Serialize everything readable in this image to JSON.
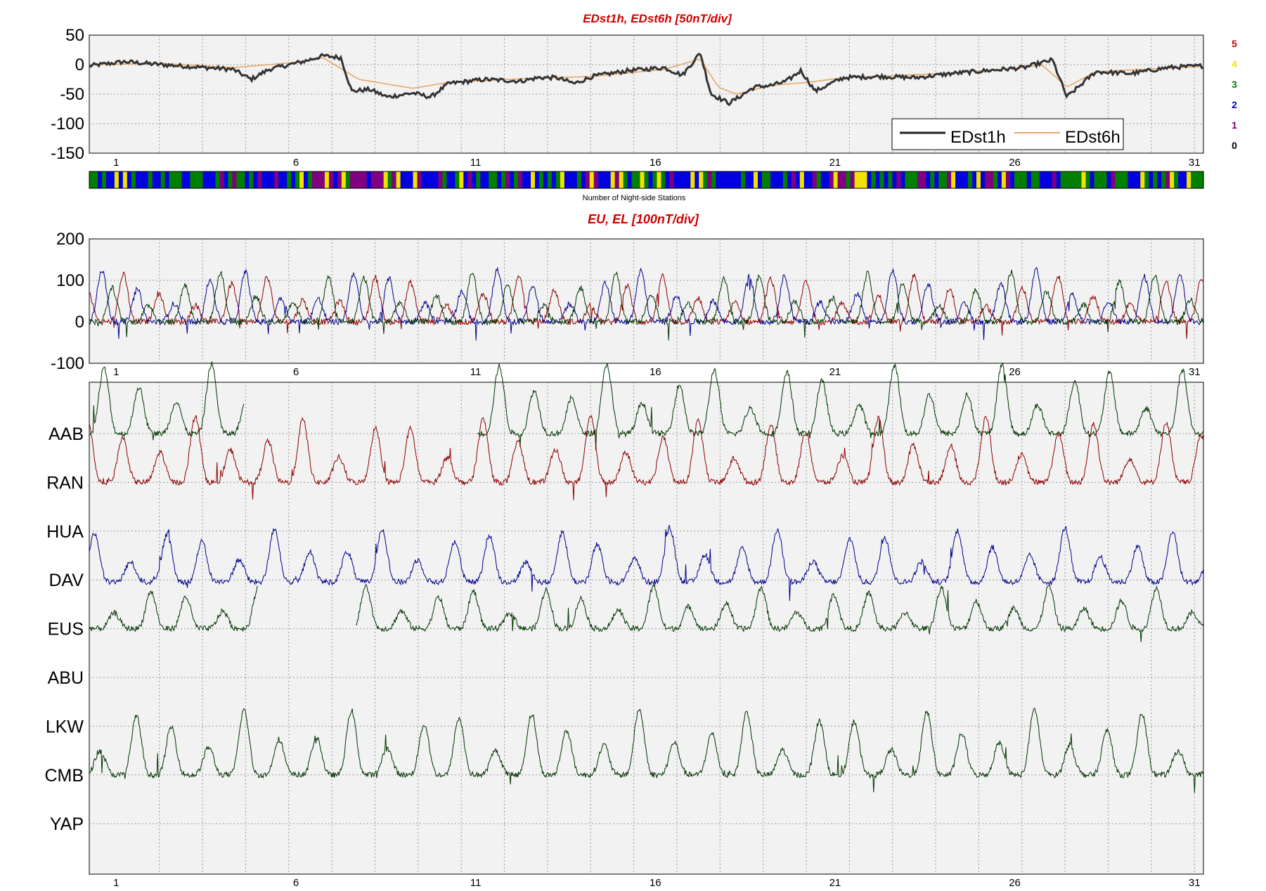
{
  "chart_data": [
    {
      "type": "line",
      "title": "EDst1h, EDst6h [50nT/div]",
      "ylim": [
        -150,
        50
      ],
      "yticks": [
        "50",
        "0",
        "-50",
        "-100",
        "-150"
      ],
      "xlim": [
        0,
        31
      ],
      "xticks": [
        "1",
        "6",
        "11",
        "16",
        "21",
        "26",
        "31"
      ],
      "grid": true,
      "legend_position": "bottom-right",
      "series": [
        {
          "name": "EDst1h",
          "color": "#333333",
          "x": [
            0,
            1,
            2,
            3,
            4,
            4.5,
            5,
            6,
            6.5,
            7,
            7.3,
            7.8,
            8.3,
            9,
            9.5,
            10,
            11,
            12,
            12.5,
            13,
            13.5,
            14,
            15,
            16,
            16.5,
            17,
            17.3,
            17.8,
            18,
            18.5,
            19,
            19.4,
            19.8,
            20.2,
            20.7,
            21,
            22,
            23,
            24,
            25,
            26,
            26.8,
            27.2,
            28,
            29,
            30,
            31
          ],
          "values": [
            -2,
            5,
            0,
            -4,
            -8,
            -25,
            -8,
            6,
            15,
            12,
            -45,
            -42,
            -55,
            -48,
            -55,
            -32,
            -25,
            -28,
            -22,
            -22,
            -32,
            -20,
            -10,
            -5,
            -18,
            20,
            -50,
            -65,
            -58,
            -38,
            -35,
            -28,
            -10,
            -45,
            -30,
            -22,
            -20,
            -22,
            -15,
            -10,
            -5,
            8,
            -55,
            -12,
            -15,
            -5,
            -2
          ]
        },
        {
          "name": "EDst6h",
          "color": "#e8a867",
          "x": [
            0,
            2,
            4,
            6,
            6.5,
            7.5,
            9,
            10,
            12,
            14,
            16,
            17,
            17.5,
            18,
            19,
            20,
            21,
            22,
            24,
            26,
            26.5,
            27.2,
            28,
            30,
            31
          ],
          "values": [
            0,
            2,
            -5,
            5,
            12,
            -25,
            -40,
            -30,
            -24,
            -20,
            -8,
            10,
            -38,
            -50,
            -35,
            -30,
            -22,
            -20,
            -14,
            -5,
            0,
            -38,
            -12,
            -6,
            -3
          ]
        }
      ],
      "color_bar_label": "Number of Night-side Stations",
      "color_bar_scale": [
        {
          "label": "5",
          "color": "#d00000"
        },
        {
          "label": "4",
          "color": "#f2e200"
        },
        {
          "label": "3",
          "color": "#008000"
        },
        {
          "label": "2",
          "color": "#0000e0"
        },
        {
          "label": "1",
          "color": "#800080"
        },
        {
          "label": "0",
          "color": "#000000"
        }
      ]
    },
    {
      "type": "line",
      "title": "EU, EL   [100nT/div]",
      "ylim": [
        -100,
        200
      ],
      "yticks": [
        "200",
        "100",
        "0",
        "-100"
      ],
      "xlim": [
        0,
        31
      ],
      "xticks": [
        "1",
        "6",
        "11",
        "16",
        "21",
        "26",
        "31"
      ],
      "grid": true,
      "series_colors": [
        "#8b0000",
        "#00008b",
        "#003300"
      ]
    },
    {
      "type": "line",
      "title": "",
      "stations": [
        "AAB",
        "RAN",
        "HUA",
        "DAV",
        "EUS",
        "ABU",
        "LKW",
        "CMB",
        "YAP"
      ],
      "station_colors": [
        "#003300",
        "#8b0000",
        "#8b0000",
        "#00008b",
        "#003300",
        "#003300",
        "#003300",
        "#003300",
        "#003300"
      ],
      "xlim": [
        0,
        31
      ],
      "xticks": [
        "1",
        "6",
        "11",
        "16",
        "21",
        "26",
        "31"
      ],
      "grid": true
    }
  ]
}
